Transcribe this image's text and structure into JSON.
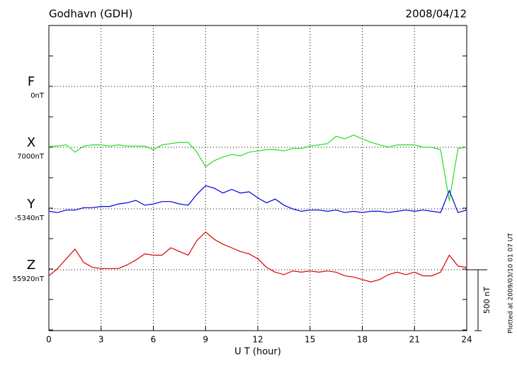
{
  "chart_data": {
    "type": "line",
    "title": "Godhavn (GDH)",
    "date": "2008/04/12",
    "xlabel": "U T (hour)",
    "note": "Plotted at 2009/03/10 01 07 UT",
    "scale": {
      "value": 500,
      "label": "500 nT"
    },
    "xlim": [
      0,
      24
    ],
    "xticks": [
      0,
      3,
      6,
      9,
      12,
      15,
      18,
      21,
      24
    ],
    "grid": true,
    "x": [
      0,
      0.5,
      1,
      1.5,
      2,
      2.5,
      3,
      3.5,
      4,
      4.5,
      5,
      5.5,
      6,
      6.5,
      7,
      7.5,
      8,
      8.5,
      9,
      9.5,
      10,
      10.5,
      11,
      11.5,
      12,
      12.5,
      13,
      13.5,
      14,
      14.5,
      15,
      15.5,
      16,
      16.5,
      17,
      17.5,
      18,
      18.5,
      19,
      19.5,
      20,
      20.5,
      21,
      21.5,
      22,
      22.5,
      23,
      23.5,
      24
    ],
    "series": [
      {
        "name": "F",
        "color": "#f0a000",
        "baseline": {
          "value": 0,
          "label": "0nT"
        },
        "values": [
          null,
          null,
          null,
          null,
          null,
          null,
          null,
          null,
          null,
          null,
          null,
          null,
          null,
          null,
          null,
          null,
          null,
          null,
          null,
          null,
          null,
          null,
          null,
          null,
          null,
          null,
          null,
          null,
          null,
          null,
          null,
          null,
          null,
          null,
          null,
          null,
          null,
          null,
          null,
          null,
          null,
          null,
          null,
          null,
          null,
          null,
          null,
          null,
          null
        ]
      },
      {
        "name": "X",
        "color": "#22e022",
        "baseline": {
          "value": 7000,
          "label": "7000nT"
        },
        "values": [
          7010,
          7010,
          7020,
          6960,
          7010,
          7020,
          7020,
          7010,
          7020,
          7010,
          7010,
          7010,
          6980,
          7020,
          7030,
          7040,
          7040,
          6960,
          6840,
          6890,
          6920,
          6940,
          6930,
          6960,
          6970,
          6980,
          6980,
          6970,
          6990,
          6990,
          7010,
          7020,
          7030,
          7090,
          7070,
          7100,
          7070,
          7040,
          7020,
          7000,
          7020,
          7020,
          7020,
          7000,
          7000,
          6980,
          6560,
          6990,
          7000
        ]
      },
      {
        "name": "Y",
        "color": "#0000dd",
        "baseline": {
          "value": -5340,
          "label": "-5340nT"
        },
        "values": [
          -5360,
          -5370,
          -5350,
          -5350,
          -5330,
          -5330,
          -5320,
          -5320,
          -5300,
          -5290,
          -5270,
          -5310,
          -5300,
          -5280,
          -5280,
          -5300,
          -5310,
          -5220,
          -5150,
          -5170,
          -5210,
          -5180,
          -5210,
          -5200,
          -5250,
          -5290,
          -5260,
          -5310,
          -5340,
          -5360,
          -5350,
          -5350,
          -5360,
          -5350,
          -5370,
          -5360,
          -5370,
          -5360,
          -5360,
          -5370,
          -5360,
          -5350,
          -5360,
          -5350,
          -5360,
          -5370,
          -5190,
          -5370,
          -5350
        ]
      },
      {
        "name": "Z",
        "color": "#dd0000",
        "baseline": {
          "value": 55920,
          "label": "55920nT"
        },
        "values": [
          55870,
          55930,
          56010,
          56090,
          55980,
          55940,
          55930,
          55930,
          55930,
          55960,
          56000,
          56050,
          56040,
          56040,
          56100,
          56070,
          56040,
          56160,
          56230,
          56170,
          56130,
          56100,
          56070,
          56050,
          56010,
          55940,
          55900,
          55880,
          55910,
          55900,
          55910,
          55900,
          55910,
          55900,
          55870,
          55860,
          55840,
          55820,
          55840,
          55880,
          55900,
          55880,
          55900,
          55870,
          55870,
          55900,
          56040,
          55950,
          55940
        ]
      }
    ]
  }
}
